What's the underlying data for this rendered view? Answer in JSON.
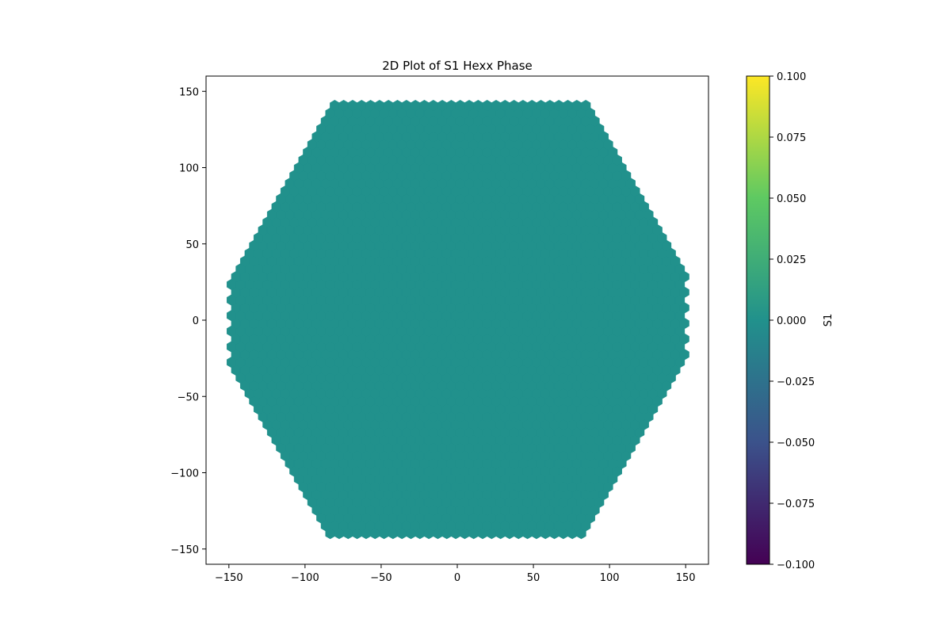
{
  "chart_data": {
    "type": "hexbin",
    "title": "2D Plot of S1 Hexx Phase",
    "xlabel": "",
    "ylabel": "",
    "xlim": [
      -165,
      165
    ],
    "ylim": [
      -160,
      160
    ],
    "x_ticks": [
      -150,
      -100,
      -50,
      0,
      50,
      100,
      150
    ],
    "y_ticks": [
      -150,
      -100,
      -50,
      0,
      50,
      100,
      150
    ],
    "x_tick_labels": [
      "−150",
      "−100",
      "−50",
      "0",
      "50",
      "100",
      "150"
    ],
    "y_tick_labels": [
      "−150",
      "−100",
      "−50",
      "0",
      "50",
      "100",
      "150"
    ],
    "region": {
      "shape": "hexagon",
      "vertices": [
        [
          -150,
          30
        ],
        [
          -85,
          142
        ],
        [
          85,
          142
        ],
        [
          150,
          30
        ],
        [
          150,
          -30
        ],
        [
          85,
          -142
        ],
        [
          -85,
          -142
        ],
        [
          -150,
          -30
        ]
      ],
      "flat_top_y": 145,
      "flat_top_x_range": [
        -65,
        65
      ],
      "value": 0.0,
      "fill_color": "#21918c"
    },
    "grid": false,
    "colorbar": {
      "label": "S1",
      "colormap": "viridis",
      "vmin": -0.1,
      "vmax": 0.1,
      "ticks": [
        -0.1,
        -0.075,
        -0.05,
        -0.025,
        0.0,
        0.025,
        0.05,
        0.075,
        0.1
      ],
      "tick_labels": [
        "−0.100",
        "−0.075",
        "−0.050",
        "−0.025",
        "0.000",
        "0.025",
        "0.050",
        "0.075",
        "0.100"
      ],
      "stops": [
        "#440154",
        "#3b528b",
        "#21918c",
        "#5ec962",
        "#fde725"
      ]
    }
  }
}
